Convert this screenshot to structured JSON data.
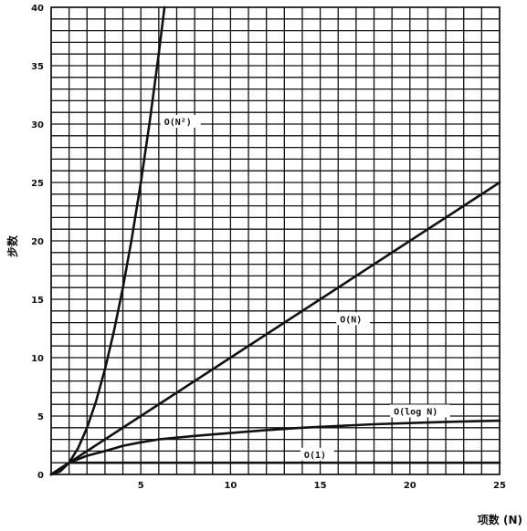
{
  "chart_data": {
    "type": "line",
    "title": "",
    "xlabel": "项数 (N)",
    "ylabel": "步数",
    "xlim": [
      0,
      25
    ],
    "ylim": [
      0,
      40
    ],
    "x_ticks": [
      5,
      10,
      15,
      20,
      25
    ],
    "y_ticks": [
      0,
      5,
      10,
      15,
      20,
      25,
      30,
      35,
      40
    ],
    "grid": true,
    "grid_minor_step_x": 1,
    "grid_minor_step_y": 1,
    "series": [
      {
        "name": "O(N²)",
        "x": [
          0,
          0.5,
          1,
          1.5,
          2,
          2.5,
          3,
          3.5,
          4,
          4.5,
          5,
          5.5,
          6,
          6.32
        ],
        "y": [
          0,
          0.25,
          1,
          2.25,
          4,
          6.25,
          9,
          12.25,
          16,
          20.25,
          25,
          30.25,
          36,
          40
        ]
      },
      {
        "name": "O(N)",
        "x": [
          0,
          25
        ],
        "y": [
          0,
          25
        ]
      },
      {
        "name": "O(log N)",
        "x": [
          0,
          1,
          2,
          3,
          4,
          5,
          6,
          8,
          10,
          12,
          14,
          16,
          18,
          20,
          22,
          25
        ],
        "y": [
          0,
          1,
          1.6,
          2.0,
          2.45,
          2.75,
          3.0,
          3.3,
          3.55,
          3.8,
          4.0,
          4.15,
          4.3,
          4.4,
          4.5,
          4.6
        ]
      },
      {
        "name": "O(1)",
        "x": [
          0,
          0.5,
          1,
          25
        ],
        "y": [
          0,
          0.5,
          1,
          1
        ]
      }
    ]
  }
}
